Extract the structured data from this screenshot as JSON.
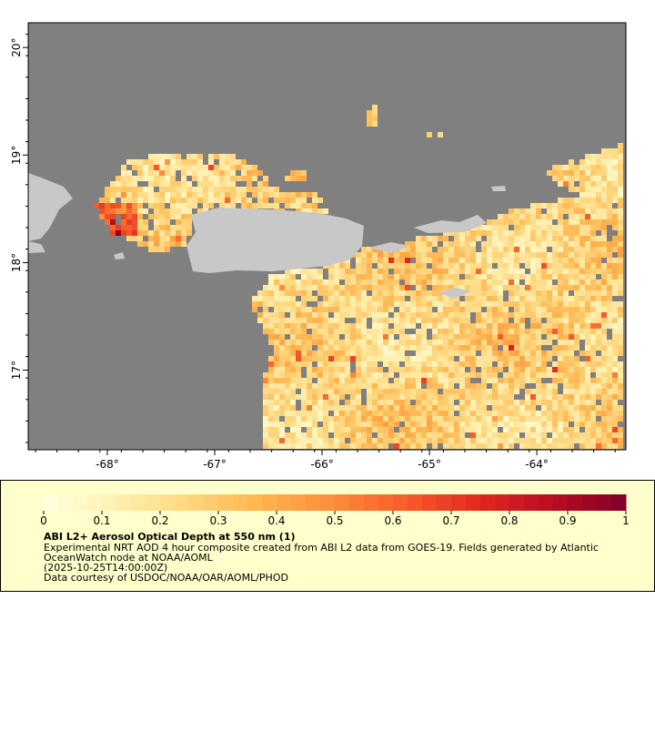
{
  "map": {
    "xlim": [
      -68.737,
      -63.17
    ],
    "ylim": [
      16.26,
      20.23
    ],
    "xticks": [
      {
        "value": -68,
        "label": "-68°"
      },
      {
        "value": -67,
        "label": "-67°"
      },
      {
        "value": -66,
        "label": "-66°"
      },
      {
        "value": -65,
        "label": "-65°"
      },
      {
        "value": -64,
        "label": "-64°"
      }
    ],
    "yticks": [
      {
        "value": 17,
        "label": "17°"
      },
      {
        "value": 18,
        "label": "18°"
      },
      {
        "value": 19,
        "label": "19°"
      },
      {
        "value": 20,
        "label": "20°"
      }
    ]
  },
  "colorbar": {
    "lim": [
      0,
      1
    ],
    "ticks": [
      0,
      0.1,
      0.2,
      0.3,
      0.4,
      0.5,
      0.6,
      0.7,
      0.8,
      0.9,
      1
    ],
    "colors": [
      "#ffffe0",
      "#fff0b0",
      "#fed77e",
      "#feb34e",
      "#fd8c3a",
      "#f65a2a",
      "#e0281e",
      "#b80c22",
      "#800026"
    ]
  },
  "legend": {
    "title": "ABI L2+ Aerosol Optical Depth at 550 nm (1)",
    "lines": [
      "Experimental NRT AOD 4 hour composite created from ABI L2 data from GOES-19. Fields generated by Atlantic",
      "OceanWatch node at NOAA/AOML",
      "(2025-10-25T14:00:00Z)",
      "Data courtesy of USDOC/NOAA/OAR/AOML/PHOD"
    ]
  }
}
